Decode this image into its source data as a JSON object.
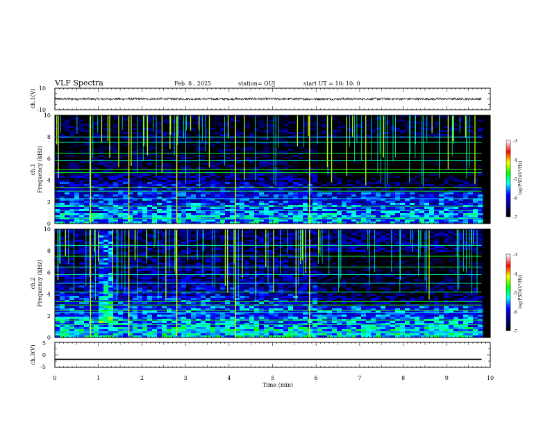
{
  "header": {
    "title": "VLF Spectra",
    "date": "Feb. 8 , 2025",
    "station": "station= OUJ",
    "start": "start UT =  10: 10: 0"
  },
  "chart_data": [
    {
      "type": "line",
      "panel": "ch1-waveform",
      "ylabel": "ch.1(V)",
      "ylim": [
        -10,
        10
      ],
      "y_ticks": [
        "10",
        "-10"
      ],
      "trace": "noise band approximately -1 to 1 V around 0 V, full 0-9.8 min",
      "x_extent_min": 9.8
    },
    {
      "type": "heatmap",
      "panel": "ch1-spectrogram",
      "ylabel": "ch.1 Frequency (kHz)",
      "ylim": [
        0,
        10
      ],
      "y_ticks": [
        "0",
        "2",
        "4",
        "6",
        "8",
        "10"
      ],
      "x_extent_min": 9.8,
      "colorbar": {
        "label": "log(PSD)(V²/Hz)",
        "range": [
          -7,
          -3
        ],
        "ticks": [
          "-7",
          "-6",
          "-5",
          "-4",
          "-3"
        ]
      },
      "colormap": [
        "#000000",
        "#000080",
        "#0000ff",
        "#00ffff",
        "#00ff00",
        "#ffff00",
        "#ff0000",
        "#ffffff"
      ],
      "lines_khz": [
        0.5,
        1.2,
        1.6,
        2.3,
        3.0,
        3.3,
        4.7,
        5.0,
        5.8,
        6.5,
        7.5,
        8.0
      ],
      "background_db": [
        -5.5,
        -5.8,
        -6.0,
        -6.2,
        -6.5,
        -6.8,
        -6.9,
        -7.0,
        -6.8,
        -6.9
      ]
    },
    {
      "type": "heatmap",
      "panel": "ch2-spectrogram",
      "ylabel": "ch.2 Frequency (kHz)",
      "ylim": [
        0,
        10
      ],
      "y_ticks": [
        "0",
        "2",
        "4",
        "6",
        "8",
        "10"
      ],
      "x_extent_min": 9.8,
      "colorbar": {
        "label": "log(PSD)(V²/Hz)",
        "range": [
          -7,
          -3
        ],
        "ticks": [
          "-7",
          "-6",
          "-5",
          "-4",
          "-3"
        ]
      },
      "colormap": [
        "#000000",
        "#000080",
        "#0000ff",
        "#00ffff",
        "#00ff00",
        "#ffff00",
        "#ff0000",
        "#ffffff"
      ],
      "lines_khz": [
        0.5,
        1.2,
        1.6,
        2.3,
        2.5,
        3.0,
        3.3,
        4.2,
        5.0,
        5.8,
        6.5,
        7.5,
        8.5
      ],
      "background_db": [
        -5.3,
        -5.6,
        -5.8,
        -6.0,
        -6.2,
        -6.4,
        -6.5,
        -6.6,
        -6.5,
        -6.6
      ]
    },
    {
      "type": "line",
      "panel": "ch3-waveform",
      "ylabel": "ch.3(V)",
      "ylim": [
        -5,
        5
      ],
      "y_ticks": [
        "5",
        "0",
        "-5"
      ],
      "xlabel": "Time  (min)",
      "xlim": [
        0,
        10
      ],
      "x_ticks": [
        "0",
        "1",
        "2",
        "3",
        "4",
        "5",
        "6",
        "7",
        "8",
        "9",
        "10"
      ],
      "x": [
        0,
        9.8
      ],
      "y": [
        -1.8,
        -1.8
      ]
    }
  ]
}
